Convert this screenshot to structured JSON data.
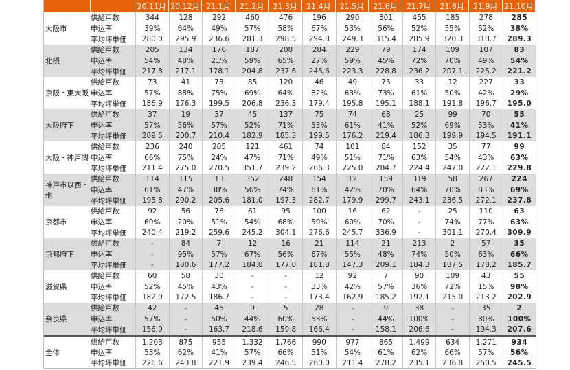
{
  "header": {
    "months": [
      "20.11月",
      "20.12月",
      "21.1月",
      "21.2月",
      "21.3月",
      "21.4月",
      "21.5月",
      "21.6月",
      "21.7月",
      "21.8月",
      "21.9月",
      "21.10月"
    ]
  },
  "metric_labels": [
    "供給戸数",
    "申込率",
    "平均坪単価"
  ],
  "colors": {
    "header_bg": "#e8620a",
    "alt_row_bg": "#dcdcdc"
  },
  "groups": [
    {
      "region": "大阪市",
      "rows": [
        [
          "344",
          "128",
          "292",
          "460",
          "476",
          "196",
          "290",
          "301",
          "455",
          "185",
          "278",
          "285"
        ],
        [
          "39%",
          "64%",
          "49%",
          "57%",
          "58%",
          "67%",
          "53%",
          "56%",
          "52%",
          "55%",
          "52%",
          "38%"
        ],
        [
          "280.0",
          "295.9",
          "236.6",
          "281.3",
          "298.5",
          "294.8",
          "249.3",
          "315.4",
          "285.9",
          "320.3",
          "318.7",
          "289.3"
        ]
      ]
    },
    {
      "region": "北摂",
      "rows": [
        [
          "205",
          "134",
          "176",
          "187",
          "208",
          "284",
          "229",
          "79",
          "174",
          "109",
          "107",
          "83"
        ],
        [
          "54%",
          "48%",
          "21%",
          "59%",
          "65%",
          "27%",
          "59%",
          "45%",
          "72%",
          "70%",
          "49%",
          "54%"
        ],
        [
          "217.8",
          "217.1",
          "178.1",
          "204.8",
          "237.6",
          "245.6",
          "223.3",
          "228.8",
          "236.2",
          "207.1",
          "225.2",
          "221.2"
        ]
      ]
    },
    {
      "region": "京阪・東大阪",
      "rows": [
        [
          "73",
          "41",
          "73",
          "85",
          "120",
          "46",
          "49",
          "75",
          "33",
          "12",
          "227",
          "33"
        ],
        [
          "57%",
          "88%",
          "75%",
          "69%",
          "64%",
          "82%",
          "63%",
          "73%",
          "61%",
          "50%",
          "42%",
          "29%"
        ],
        [
          "186.9",
          "176.3",
          "199.5",
          "206.8",
          "236.3",
          "179.4",
          "195.8",
          "195.1",
          "188.1",
          "191.8",
          "196.7",
          "195.0"
        ]
      ]
    },
    {
      "region": "大阪府下",
      "rows": [
        [
          "37",
          "19",
          "37",
          "45",
          "137",
          "75",
          "74",
          "68",
          "25",
          "99",
          "70",
          "55"
        ],
        [
          "57%",
          "56%",
          "57%",
          "52%",
          "71%",
          "53%",
          "61%",
          "41%",
          "52%",
          "69%",
          "53%",
          "41%"
        ],
        [
          "209.5",
          "200.7",
          "210.4",
          "182.9",
          "185.3",
          "199.5",
          "176.2",
          "219.4",
          "186.3",
          "199.9",
          "194.5",
          "191.1"
        ]
      ]
    },
    {
      "region": "大阪・神戸間",
      "rows": [
        [
          "236",
          "240",
          "205",
          "121",
          "461",
          "74",
          "101",
          "84",
          "152",
          "35",
          "77",
          "99"
        ],
        [
          "66%",
          "75%",
          "24%",
          "47%",
          "71%",
          "49%",
          "51%",
          "71%",
          "63%",
          "54%",
          "43%",
          "63%"
        ],
        [
          "211.4",
          "275.0",
          "270.5",
          "351.7",
          "239.2",
          "266.3",
          "225.0",
          "284.7",
          "224.4",
          "247.0",
          "222.1",
          "229.8"
        ]
      ]
    },
    {
      "region": "神戸市以西・他",
      "rows": [
        [
          "114",
          "115",
          "13",
          "352",
          "248",
          "154",
          "12",
          "159",
          "319",
          "58",
          "267",
          "224"
        ],
        [
          "61%",
          "47%",
          "38%",
          "56%",
          "74%",
          "61%",
          "42%",
          "70%",
          "64%",
          "70%",
          "83%",
          "69%"
        ],
        [
          "195.8",
          "290.2",
          "205.6",
          "181.0",
          "197.3",
          "282.7",
          "179.9",
          "299.7",
          "243.1",
          "236.5",
          "272.1",
          "237.8"
        ]
      ]
    },
    {
      "region": "京都市",
      "rows": [
        [
          "92",
          "56",
          "76",
          "61",
          "95",
          "100",
          "16",
          "62",
          "-",
          "25",
          "110",
          "63"
        ],
        [
          "60%",
          "20%",
          "51%",
          "54%",
          "68%",
          "59%",
          "60%",
          "70%",
          "-",
          "74%",
          "77%",
          "63%"
        ],
        [
          "240.4",
          "219.2",
          "259.6",
          "245.2",
          "304.1",
          "276.6",
          "245.7",
          "336.9",
          "-",
          "301.1",
          "270.4",
          "309.9"
        ]
      ]
    },
    {
      "region": "京都府下",
      "rows": [
        [
          "-",
          "84",
          "7",
          "12",
          "16",
          "21",
          "114",
          "21",
          "213",
          "2",
          "57",
          "35"
        ],
        [
          "-",
          "95%",
          "57%",
          "67%",
          "56%",
          "67%",
          "55%",
          "48%",
          "74%",
          "50%",
          "63%",
          "66%"
        ],
        [
          "-",
          "180.6",
          "177.2",
          "184.0",
          "177.0",
          "181.8",
          "147.3",
          "209.1",
          "184.3",
          "187.5",
          "178.2",
          "185.7"
        ]
      ]
    },
    {
      "region": "滋賀県",
      "rows": [
        [
          "60",
          "58",
          "30",
          "-",
          "-",
          "12",
          "92",
          "7",
          "90",
          "109",
          "43",
          "55"
        ],
        [
          "52%",
          "45%",
          "43%",
          "-",
          "-",
          "33%",
          "42%",
          "57%",
          "36%",
          "72%",
          "15%",
          "98%"
        ],
        [
          "182.0",
          "172.5",
          "186.7",
          "-",
          "-",
          "173.4",
          "162.9",
          "185.2",
          "192.1",
          "215.0",
          "213.2",
          "202.9"
        ]
      ]
    },
    {
      "region": "奈良県",
      "rows": [
        [
          "42",
          "-",
          "46",
          "9",
          "5",
          "28",
          "-",
          "9",
          "38",
          "-",
          "35",
          "2"
        ],
        [
          "57%",
          "-",
          "50%",
          "44%",
          "60%",
          "53%",
          "-",
          "44%",
          "100%",
          "-",
          "80%",
          "100%"
        ],
        [
          "156.9",
          "-",
          "163.7",
          "218.6",
          "159.8",
          "166.4",
          "-",
          "158.1",
          "206.6",
          "-",
          "194.3",
          "207.6"
        ]
      ]
    },
    {
      "region": "全体",
      "rows": [
        [
          "1,203",
          "875",
          "955",
          "1,332",
          "1,766",
          "990",
          "977",
          "865",
          "1,499",
          "634",
          "1,271",
          "934"
        ],
        [
          "53%",
          "62%",
          "41%",
          "57%",
          "66%",
          "51%",
          "54%",
          "61%",
          "62%",
          "66%",
          "57%",
          "56%"
        ],
        [
          "226.6",
          "243.8",
          "221.9",
          "239.4",
          "246.5",
          "260.0",
          "211.4",
          "278.2",
          "235.1",
          "236.8",
          "250.5",
          "245.5"
        ]
      ]
    }
  ]
}
